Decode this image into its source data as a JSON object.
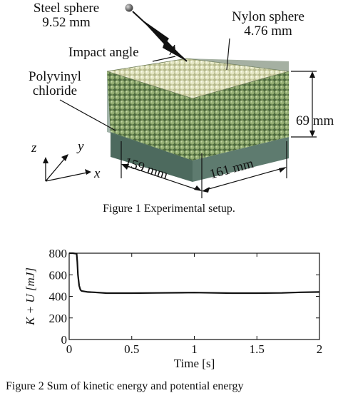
{
  "figure1": {
    "labels": {
      "steel_sphere_line1": "Steel sphere",
      "steel_sphere_line2": "9.52 mm",
      "nylon_sphere_line1": "Nylon sphere",
      "nylon_sphere_line2": "4.76 mm",
      "impact_angle": "Impact angle",
      "pvc_line1": "Polyvinyl",
      "pvc_line2": "chloride",
      "height": "69 mm",
      "width_left": "159 mm",
      "width_right": "161 mm",
      "axis_x": "x",
      "axis_y": "y",
      "axis_z": "z"
    },
    "caption": "Figure 1 Experimental setup."
  },
  "figure2": {
    "caption_partial": "Figure 2 Sum of kinetic energy and potential energy"
  },
  "chart_data": {
    "type": "line",
    "xlabel": "Time [s]",
    "ylabel": "K + U [mJ]",
    "xlim": [
      0,
      2
    ],
    "ylim": [
      0,
      800
    ],
    "x_ticks": [
      "0",
      "0.5",
      "1",
      "1.5",
      "2"
    ],
    "y_ticks": [
      "0",
      "200",
      "400",
      "600",
      "800"
    ],
    "grid": false,
    "series": [
      {
        "x": [
          0,
          0.03,
          0.06,
          0.065,
          0.07,
          0.08,
          0.09,
          0.1,
          0.15,
          0.2,
          0.3,
          0.5,
          0.7,
          1.0,
          1.3,
          1.5,
          1.7,
          1.85,
          2.0
        ],
        "y": [
          800,
          800,
          795,
          720,
          600,
          500,
          460,
          450,
          440,
          438,
          430,
          430,
          432,
          435,
          430,
          430,
          432,
          438,
          440
        ]
      }
    ]
  }
}
